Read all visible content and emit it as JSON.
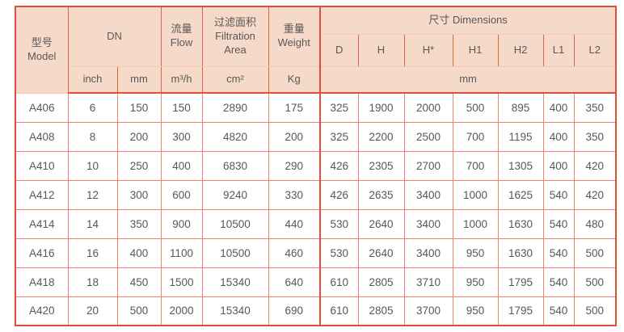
{
  "colors": {
    "outer_border": "#e14f39",
    "header_bg": "#f6dac9",
    "header_grid_line": "#dd6243",
    "header_light_line": "#f3c6b2",
    "cell_grid_line": "#ef8373",
    "text": "#595757"
  },
  "header": {
    "model_zh": "型号",
    "model_en": "Model",
    "dn": "DN",
    "flow_zh": "流量",
    "flow_en": "Flow",
    "filtration_zh": "过滤面积",
    "filtration_en_line1": "Filtration",
    "filtration_en_line2": "Area",
    "weight_zh": "重量",
    "weight_en": "Weight",
    "dimensions": "尺寸 Dimensions",
    "dim_cols": [
      "D",
      "H",
      "H*",
      "H1",
      "H2",
      "L1",
      "L2"
    ],
    "unit_inch": "inch",
    "unit_mm": "mm",
    "unit_flow": "m³/h",
    "unit_area": "cm²",
    "unit_weight": "Kg",
    "unit_dims": "mm"
  },
  "column_keys": [
    "model",
    "dn-inch",
    "dn-mm",
    "flow",
    "filtration-area",
    "weight",
    "dim-d",
    "dim-h",
    "dim-hstar",
    "dim-h1",
    "dim-h2",
    "dim-l1",
    "dim-l2"
  ],
  "rows": [
    {
      "model": "A406",
      "inch": "6",
      "mm": "150",
      "flow": "150",
      "area": "2890",
      "weight": "175",
      "dims": [
        "325",
        "1900",
        "2000",
        "500",
        "895",
        "400",
        "350"
      ]
    },
    {
      "model": "A408",
      "inch": "8",
      "mm": "200",
      "flow": "300",
      "area": "4820",
      "weight": "200",
      "dims": [
        "325",
        "2200",
        "2500",
        "700",
        "1195",
        "400",
        "350"
      ]
    },
    {
      "model": "A410",
      "inch": "10",
      "mm": "250",
      "flow": "400",
      "area": "6830",
      "weight": "290",
      "dims": [
        "426",
        "2305",
        "2700",
        "700",
        "1305",
        "400",
        "420"
      ]
    },
    {
      "model": "A412",
      "inch": "12",
      "mm": "300",
      "flow": "600",
      "area": "9240",
      "weight": "330",
      "dims": [
        "426",
        "2635",
        "3400",
        "1000",
        "1625",
        "540",
        "420"
      ]
    },
    {
      "model": "A414",
      "inch": "14",
      "mm": "350",
      "flow": "900",
      "area": "10500",
      "weight": "440",
      "dims": [
        "530",
        "2640",
        "3400",
        "1000",
        "1630",
        "540",
        "480"
      ]
    },
    {
      "model": "A416",
      "inch": "16",
      "mm": "400",
      "flow": "1100",
      "area": "10500",
      "weight": "460",
      "dims": [
        "530",
        "2640",
        "3400",
        "950",
        "1630",
        "540",
        "500"
      ]
    },
    {
      "model": "A418",
      "inch": "18",
      "mm": "450",
      "flow": "1500",
      "area": "15340",
      "weight": "640",
      "dims": [
        "610",
        "2805",
        "3710",
        "950",
        "1795",
        "540",
        "500"
      ]
    },
    {
      "model": "A420",
      "inch": "20",
      "mm": "500",
      "flow": "2000",
      "area": "15340",
      "weight": "690",
      "dims": [
        "610",
        "2805",
        "3700",
        "950",
        "1795",
        "540",
        "500"
      ]
    }
  ]
}
